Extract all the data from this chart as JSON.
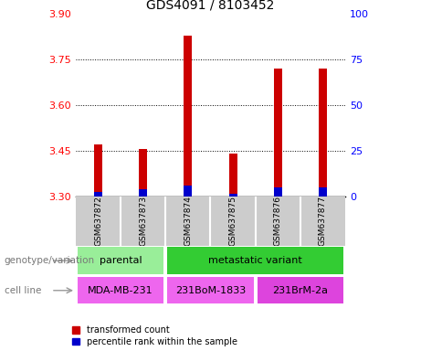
{
  "title": "GDS4091 / 8103452",
  "samples": [
    "GSM637872",
    "GSM637873",
    "GSM637874",
    "GSM637875",
    "GSM637876",
    "GSM637877"
  ],
  "red_values": [
    3.47,
    3.455,
    3.83,
    3.44,
    3.72,
    3.72
  ],
  "blue_values": [
    3.315,
    3.325,
    3.335,
    3.31,
    3.33,
    3.33
  ],
  "ylim_left": [
    3.3,
    3.9
  ],
  "ylim_right": [
    0,
    100
  ],
  "yticks_left": [
    3.3,
    3.45,
    3.6,
    3.75,
    3.9
  ],
  "yticks_right": [
    0,
    25,
    50,
    75,
    100
  ],
  "gridlines": [
    3.45,
    3.6,
    3.75
  ],
  "bar_width": 0.18,
  "red_color": "#cc0000",
  "blue_color": "#0000cc",
  "bar_bottom": 3.3,
  "genotype_groups": [
    {
      "label": "parental",
      "start": 0,
      "end": 2,
      "color": "#99ee99"
    },
    {
      "label": "metastatic variant",
      "start": 2,
      "end": 6,
      "color": "#33cc33"
    }
  ],
  "cell_line_groups": [
    {
      "label": "MDA-MB-231",
      "start": 0,
      "end": 2,
      "color": "#ee66ee"
    },
    {
      "label": "231BoM-1833",
      "start": 2,
      "end": 4,
      "color": "#ee66ee"
    },
    {
      "label": "231BrM-2a",
      "start": 4,
      "end": 6,
      "color": "#dd44dd"
    }
  ],
  "legend_red": "transformed count",
  "legend_blue": "percentile rank within the sample",
  "xlabel_genotype": "genotype/variation",
  "xlabel_cellline": "cell line",
  "plot_bg": "#ffffff",
  "sample_area_bg": "#cccccc",
  "tick_fontsize": 8,
  "title_fontsize": 10
}
